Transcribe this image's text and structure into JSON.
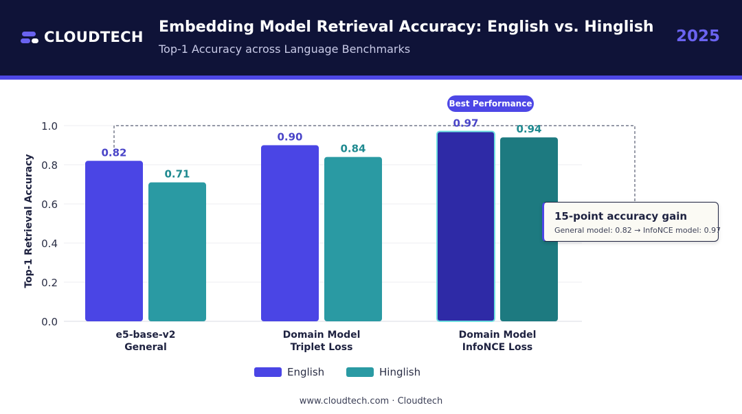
{
  "header": {
    "brand": "CLOUDTECH",
    "title": "Embedding Model Retrieval Accuracy: English vs. Hinglish",
    "subtitle": "Top-1 Accuracy across Language Benchmarks",
    "year": "2025"
  },
  "colors": {
    "header_bg": "#0f1338",
    "accent": "#4d47e6",
    "english": "#4a45e5",
    "hinglish": "#2a9aa3",
    "english_best": "#2e2aa6",
    "hinglish_best": "#1d7a80",
    "highlight_border": "#6fe0e0"
  },
  "chart_data": {
    "type": "bar",
    "title": "Embedding Model Retrieval Accuracy: English vs. Hinglish",
    "subtitle": "Top-1 Accuracy across Language Benchmarks",
    "ylabel": "Top-1 Retrieval Accuracy",
    "xlabel": "",
    "ylim": [
      0,
      1.0
    ],
    "yticks": [
      "0.0",
      "0.2",
      "0.4",
      "0.6",
      "0.8",
      "1.0"
    ],
    "grid": true,
    "legend_position": "bottom",
    "categories": [
      [
        "e5-base-v2",
        "General"
      ],
      [
        "Domain Model",
        "Triplet Loss"
      ],
      [
        "Domain Model",
        "InfoNCE Loss"
      ]
    ],
    "series": [
      {
        "name": "English",
        "values": [
          0.82,
          0.9,
          0.97
        ],
        "labels": [
          "0.82",
          "0.90",
          "0.97"
        ]
      },
      {
        "name": "Hinglish",
        "values": [
          0.71,
          0.84,
          0.94
        ],
        "labels": [
          "0.71",
          "0.84",
          "0.94"
        ]
      }
    ],
    "annotations": {
      "best_badge": "Best Performance",
      "callout_title": "15-point accuracy gain",
      "callout_text": "General model: 0.82 → InfoNCE model: 0.97"
    }
  },
  "footer": "www.cloudtech.com · Cloudtech"
}
